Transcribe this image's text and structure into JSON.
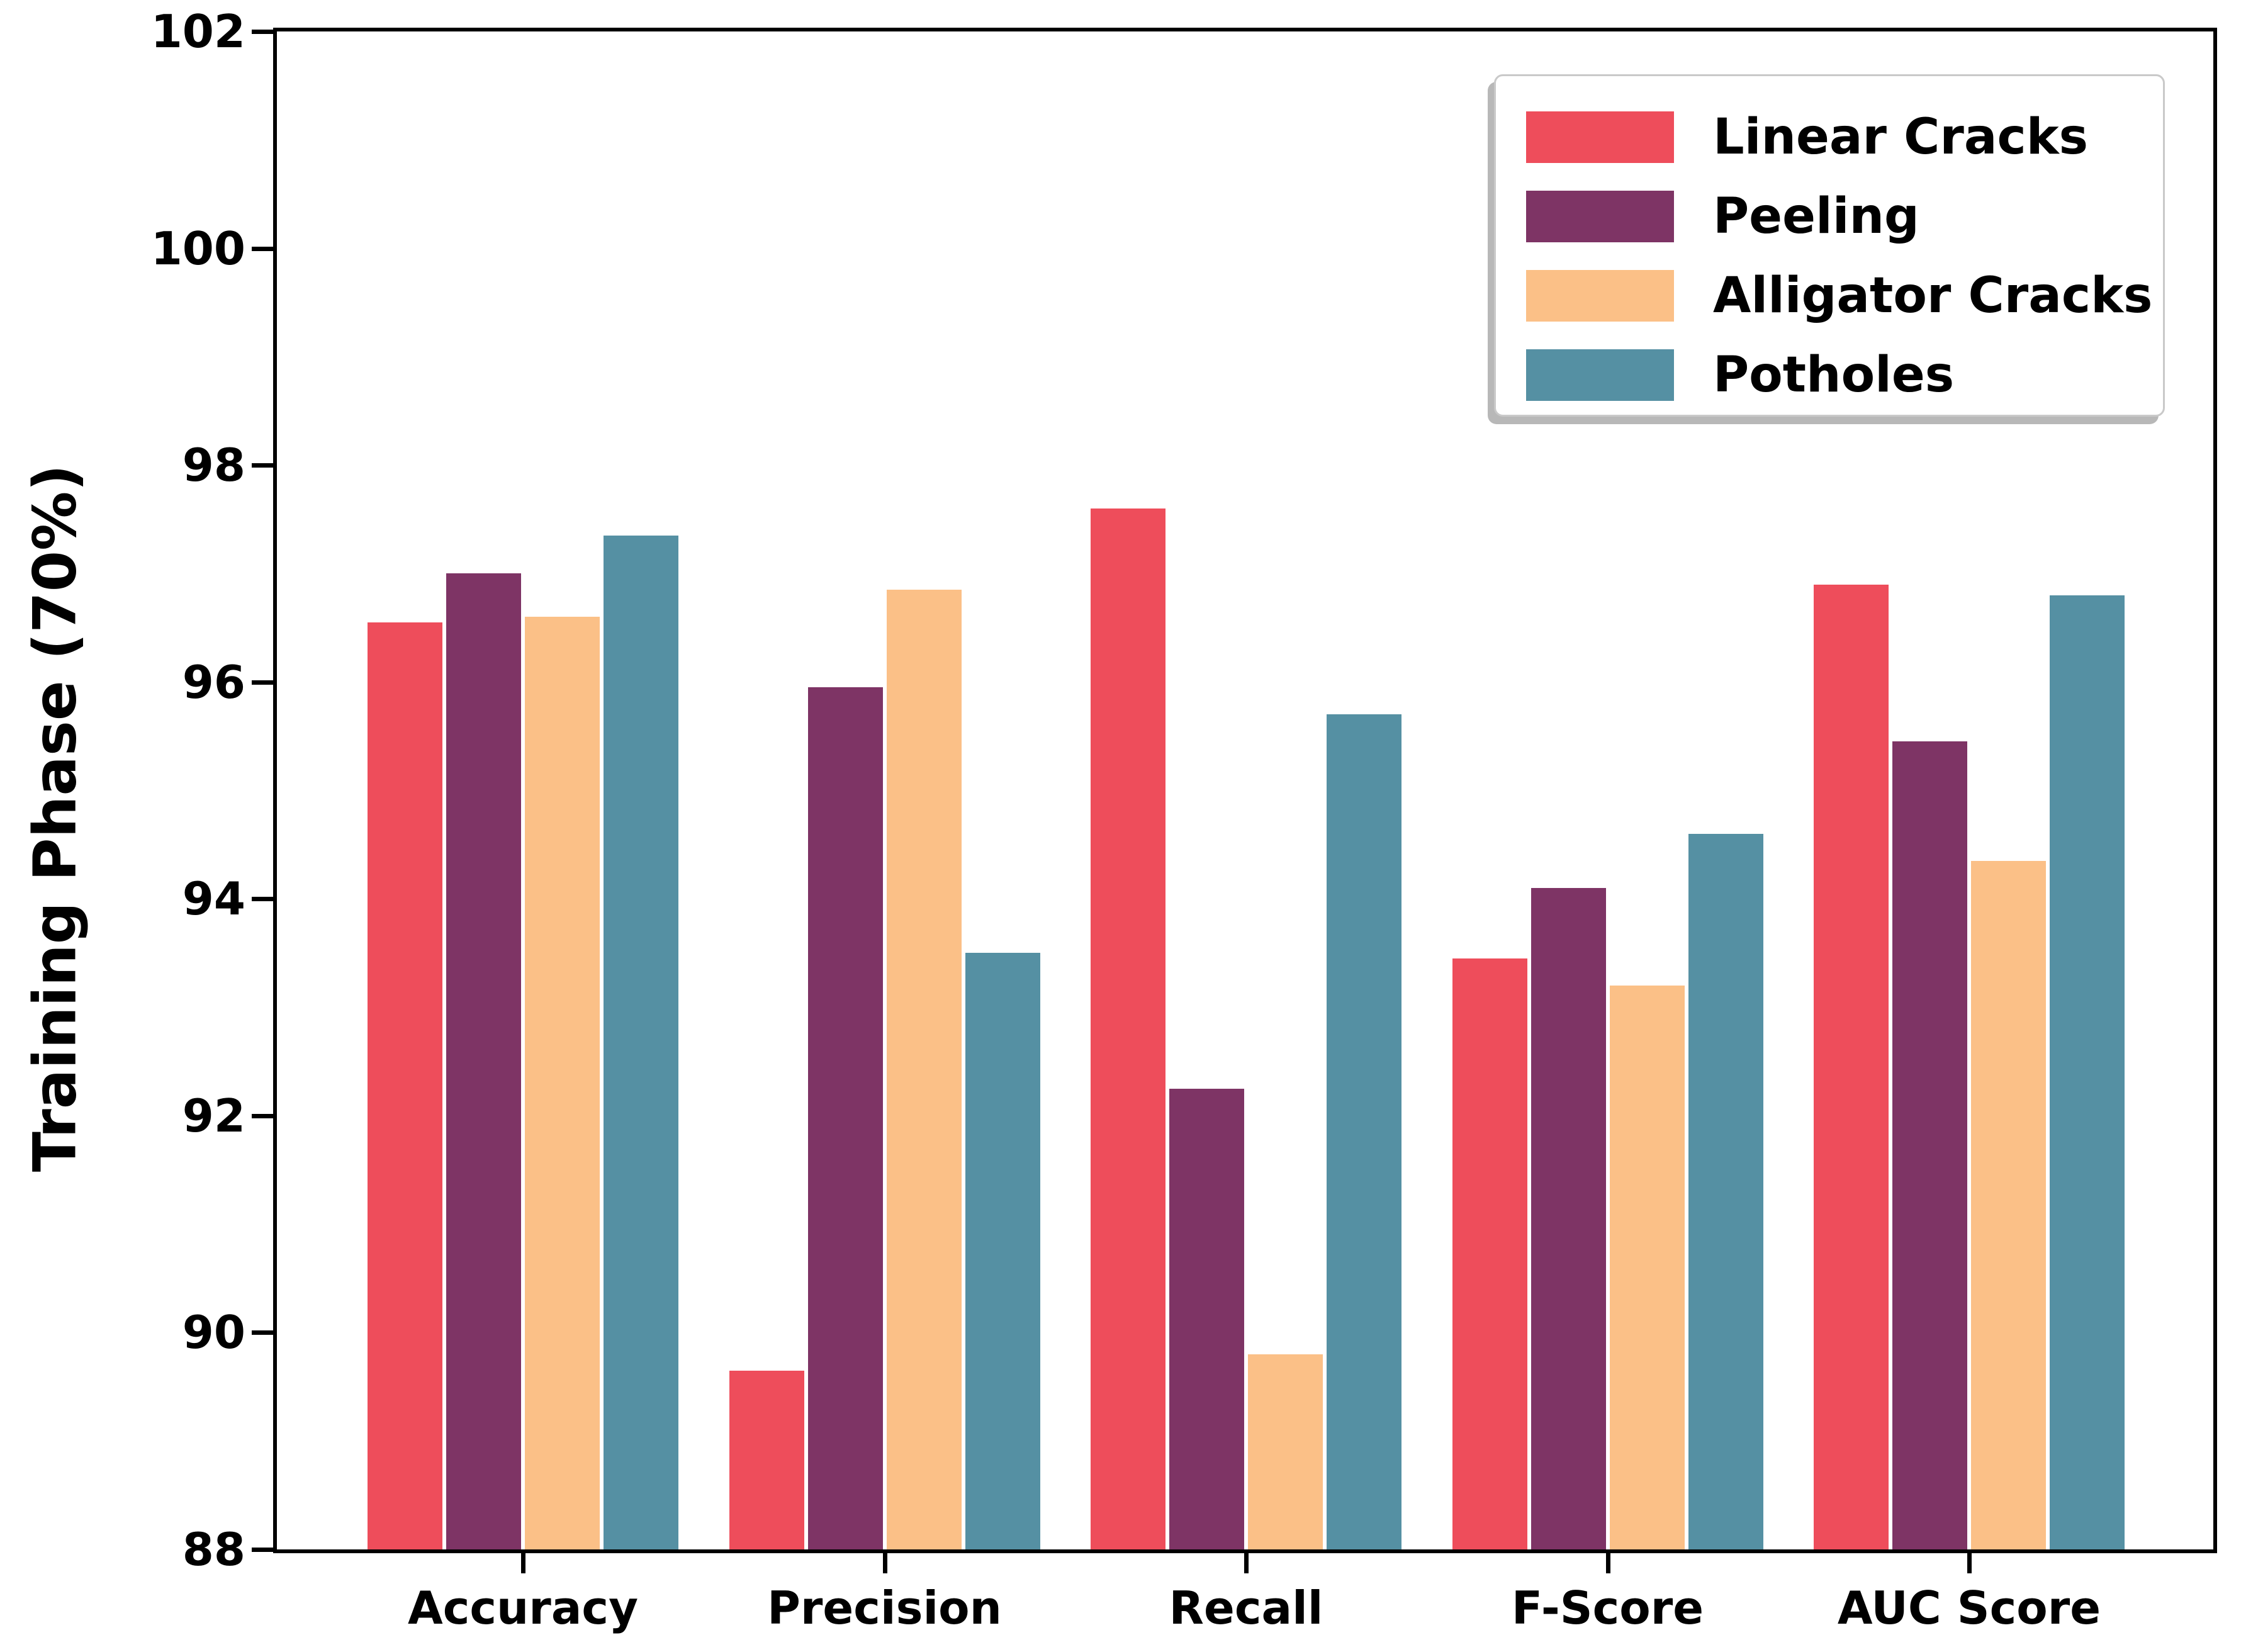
{
  "figure": {
    "background": "#ffffff",
    "axis_color": "#000000"
  },
  "chart_data": {
    "type": "bar",
    "title": "",
    "xlabel": "",
    "ylabel": "Training Phase (70%)",
    "categories": [
      "Accuracy",
      "Precision",
      "Recall",
      "F-Score",
      "AUC Score"
    ],
    "series": [
      {
        "name": "Linear Cracks",
        "color": "#ee4d5b",
        "values": [
          96.55,
          89.65,
          97.6,
          93.45,
          96.9
        ]
      },
      {
        "name": "Peeling",
        "color": "#7e3465",
        "values": [
          97.0,
          95.95,
          92.25,
          94.1,
          95.45
        ]
      },
      {
        "name": "Alligator Cracks",
        "color": "#fbc087",
        "values": [
          96.6,
          96.85,
          89.8,
          93.2,
          94.35
        ]
      },
      {
        "name": "Potholes",
        "color": "#5590a3",
        "values": [
          97.35,
          93.5,
          95.7,
          94.6,
          96.8
        ]
      }
    ],
    "ylim": [
      88,
      102
    ],
    "yticks": [
      88,
      90,
      92,
      94,
      96,
      98,
      100,
      102
    ],
    "grid": false,
    "legend_position": "upper right"
  }
}
